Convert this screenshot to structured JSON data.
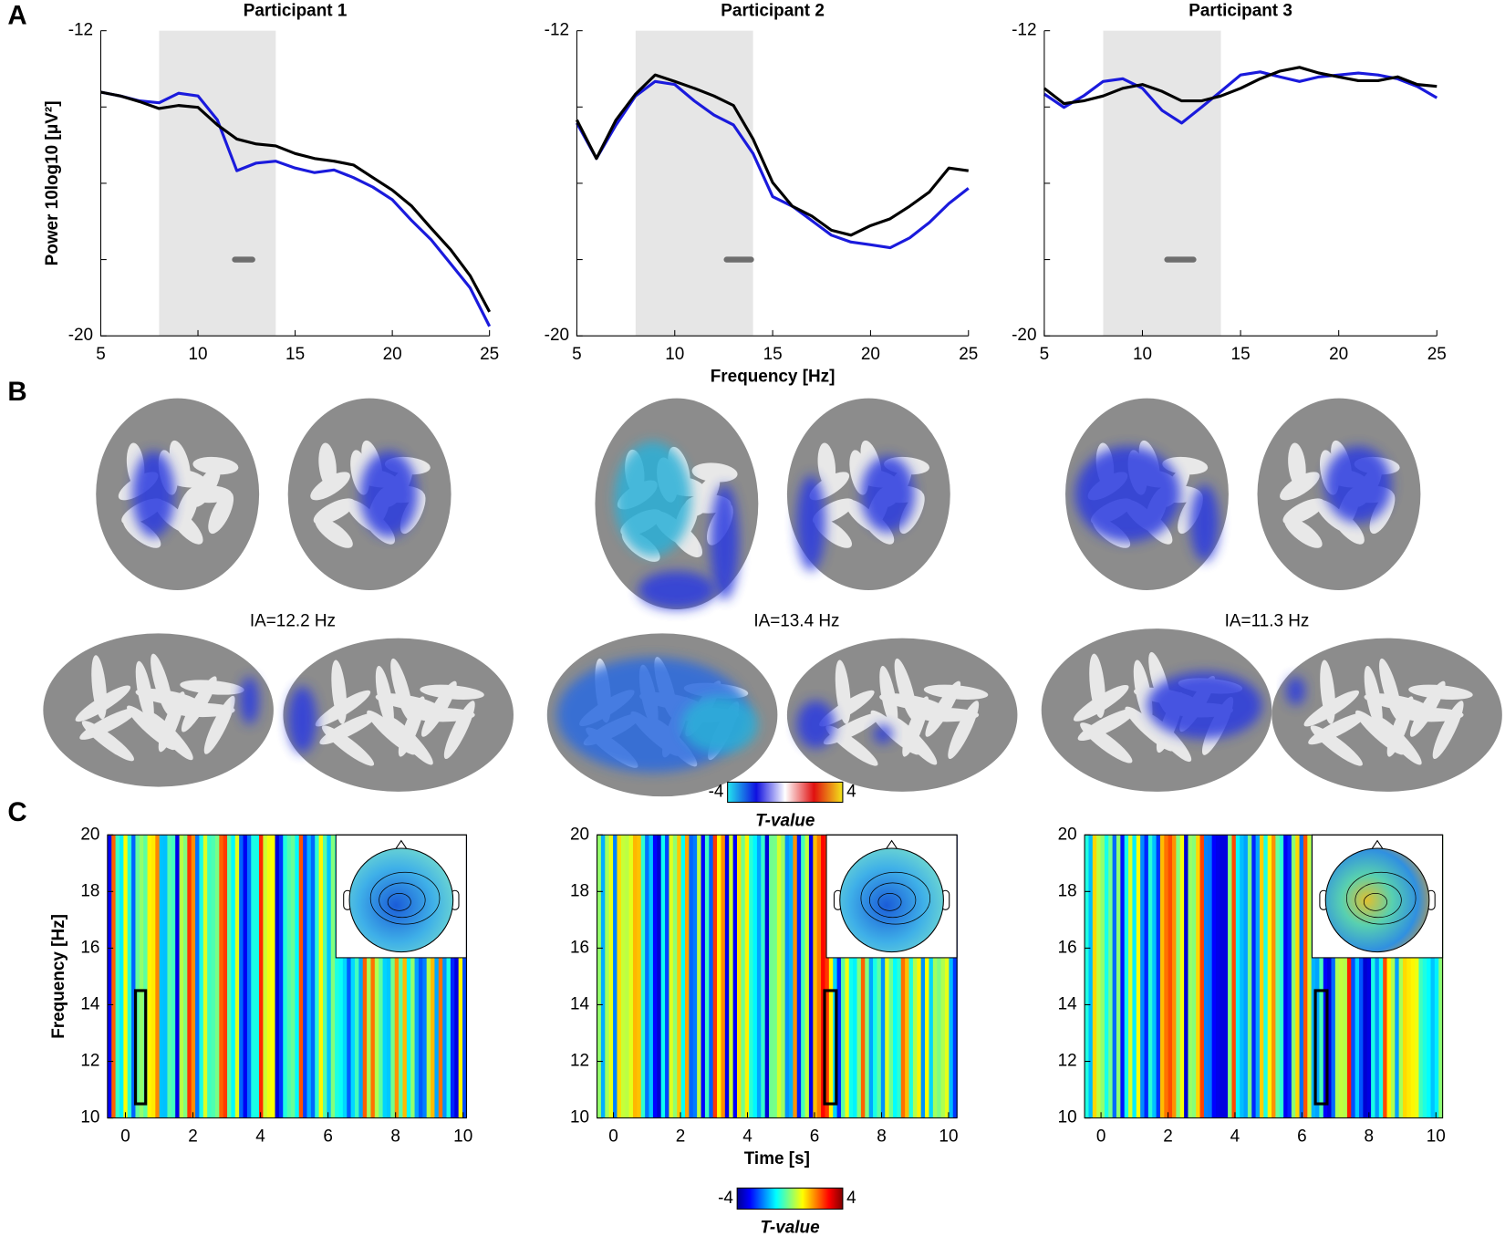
{
  "panel_labels": [
    "A",
    "B",
    "C"
  ],
  "brain_maps": [
    {
      "label": "IA=12.2 Hz"
    },
    {
      "label": "IA=13.4 Hz"
    },
    {
      "label": "IA=11.3 Hz"
    }
  ],
  "colorbars": [
    {
      "lim": [
        -4,
        4
      ],
      "ticks": [
        -4,
        4
      ],
      "label": "T-value"
    },
    {
      "lim": [
        -4,
        4
      ],
      "ticks": [
        -4,
        4
      ],
      "label": "T-value"
    }
  ],
  "chart_data": [
    {
      "type": "line",
      "title": "Participant 1",
      "y_label": "Power 10log10 [μV²]",
      "x": [
        5,
        6,
        7,
        8,
        9,
        10,
        11,
        12,
        13,
        14,
        15,
        16,
        17,
        18,
        19,
        20,
        21,
        22,
        23,
        24,
        25
      ],
      "series": [
        {
          "color": "#1a1adc",
          "values": [
            -13.61,
            -13.71,
            -13.84,
            -13.89,
            -13.64,
            -13.71,
            -14.34,
            -15.67,
            -15.47,
            -15.42,
            -15.6,
            -15.72,
            -15.65,
            -15.85,
            -16.1,
            -16.43,
            -16.98,
            -17.48,
            -18.11,
            -18.74,
            -19.75
          ]
        },
        {
          "color": "#000000",
          "values": [
            -13.61,
            -13.71,
            -13.86,
            -14.04,
            -13.96,
            -14.01,
            -14.47,
            -14.84,
            -14.97,
            -15.02,
            -15.22,
            -15.35,
            -15.42,
            -15.52,
            -15.85,
            -16.18,
            -16.6,
            -17.18,
            -17.74,
            -18.42,
            -19.37
          ]
        }
      ],
      "xlim": [
        5,
        25
      ],
      "xticks": [
        5,
        10,
        15,
        20,
        25
      ],
      "ylim": [
        -20,
        -12
      ],
      "yticks": [
        -12,
        -20
      ],
      "minor_yticks": [
        -14,
        -16,
        -18
      ],
      "shade": [
        8,
        14
      ],
      "shade_color": "#e6e6e6",
      "marker": {
        "x": [
          11.9,
          12.8
        ],
        "y": -18,
        "color": "#6e6e6e"
      }
    },
    {
      "type": "line",
      "title": "Participant 2",
      "x_label": "Frequency [Hz]",
      "x": [
        5,
        6,
        7,
        8,
        9,
        10,
        11,
        12,
        13,
        14,
        15,
        16,
        17,
        18,
        19,
        20,
        21,
        22,
        23,
        24,
        25
      ],
      "series": [
        {
          "color": "#1a1adc",
          "values": [
            -14.42,
            -15.35,
            -14.47,
            -13.71,
            -13.33,
            -13.41,
            -13.84,
            -14.21,
            -14.47,
            -15.22,
            -16.35,
            -16.6,
            -16.98,
            -17.36,
            -17.54,
            -17.61,
            -17.69,
            -17.43,
            -17.03,
            -16.53,
            -16.13
          ]
        },
        {
          "color": "#000000",
          "values": [
            -14.34,
            -15.35,
            -14.34,
            -13.66,
            -13.16,
            -13.33,
            -13.51,
            -13.71,
            -13.96,
            -14.84,
            -15.98,
            -16.6,
            -16.86,
            -17.23,
            -17.36,
            -17.11,
            -16.93,
            -16.6,
            -16.23,
            -15.6,
            -15.67
          ]
        }
      ],
      "xlim": [
        5,
        25
      ],
      "xticks": [
        5,
        10,
        15,
        20,
        25
      ],
      "ylim": [
        -20,
        -12
      ],
      "yticks": [
        -12,
        -20
      ],
      "minor_yticks": [
        -14,
        -16,
        -18
      ],
      "shade": [
        8,
        14
      ],
      "shade_color": "#e6e6e6",
      "marker": {
        "x": [
          12.65,
          13.9
        ],
        "y": -18,
        "color": "#6e6e6e"
      }
    },
    {
      "type": "line",
      "title": "Participant 3",
      "x": [
        5,
        6,
        7,
        8,
        9,
        10,
        11,
        12,
        13,
        14,
        15,
        16,
        17,
        18,
        19,
        20,
        21,
        22,
        23,
        24,
        25
      ],
      "series": [
        {
          "color": "#1a1adc",
          "values": [
            -13.66,
            -14.01,
            -13.71,
            -13.33,
            -13.26,
            -13.51,
            -14.09,
            -14.42,
            -14.01,
            -13.59,
            -13.16,
            -13.08,
            -13.21,
            -13.33,
            -13.21,
            -13.16,
            -13.11,
            -13.16,
            -13.26,
            -13.46,
            -13.76
          ]
        },
        {
          "color": "#000000",
          "values": [
            -13.51,
            -13.91,
            -13.84,
            -13.71,
            -13.51,
            -13.41,
            -13.59,
            -13.84,
            -13.84,
            -13.71,
            -13.51,
            -13.26,
            -13.06,
            -12.96,
            -13.11,
            -13.21,
            -13.31,
            -13.31,
            -13.21,
            -13.41,
            -13.46
          ]
        }
      ],
      "xlim": [
        5,
        25
      ],
      "xticks": [
        5,
        10,
        15,
        20,
        25
      ],
      "ylim": [
        -20,
        -12
      ],
      "yticks": [
        -12,
        -20
      ],
      "minor_yticks": [
        -14,
        -16,
        -18
      ],
      "shade": [
        8,
        14
      ],
      "shade_color": "#e6e6e6",
      "marker": {
        "x": [
          11.26,
          12.6
        ],
        "y": -18,
        "color": "#6e6e6e"
      }
    },
    {
      "type": "heatmap",
      "y_label": "Frequency [Hz]",
      "xlim": [
        -0.53,
        10.1
      ],
      "xticks": [
        0,
        2,
        4,
        6,
        8,
        10
      ],
      "ylim": [
        10,
        20
      ],
      "yticks": [
        10,
        12,
        14,
        16,
        18,
        20
      ],
      "window": {
        "x": [
          0.3,
          0.6
        ],
        "y": [
          10.5,
          14.5
        ]
      }
    },
    {
      "type": "heatmap",
      "x_label": "Time [s]",
      "xlim": [
        -0.49,
        10.25
      ],
      "xticks": [
        0,
        2,
        4,
        6,
        8,
        10
      ],
      "ylim": [
        10,
        20
      ],
      "yticks": [
        10,
        12,
        14,
        16,
        18,
        20
      ],
      "window": {
        "x": [
          6.3,
          6.65
        ],
        "y": [
          10.5,
          14.5
        ]
      }
    },
    {
      "type": "heatmap",
      "xlim": [
        -0.49,
        10.2
      ],
      "xticks": [
        0,
        2,
        4,
        6,
        8,
        10
      ],
      "ylim": [
        10,
        20
      ],
      "yticks": [
        10,
        12,
        14,
        16,
        18,
        20
      ],
      "window": {
        "x": [
          6.4,
          6.75
        ],
        "y": [
          10.5,
          14.5
        ]
      }
    }
  ]
}
